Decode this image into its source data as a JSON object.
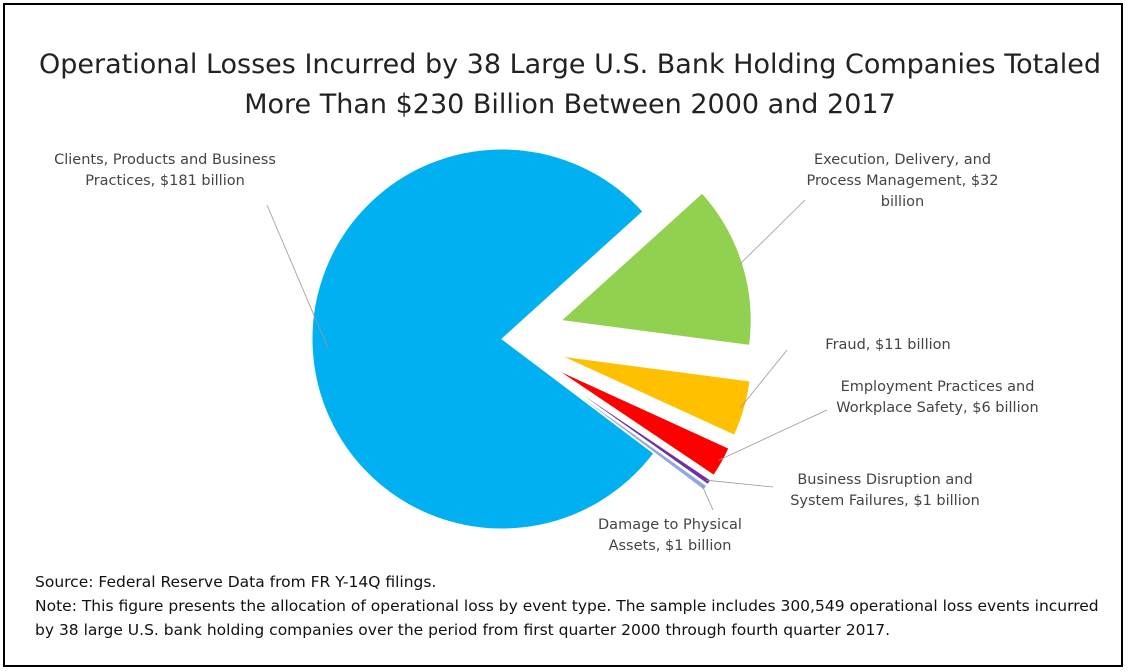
{
  "chart_data": {
    "type": "pie",
    "title": "Operational Losses Incurred by 38 Large U.S. Bank Holding Companies Totaled More Than $230 Billion Between 2000 and 2017",
    "values": [
      181,
      32,
      11,
      6,
      1,
      1
    ],
    "value_labels": [
      "Clients, Products and Business Practices, $181 billion",
      "Execution, Delivery, and Process Management, $32 billion",
      "Fraud, $11 billion",
      "Employment Practices and Workplace Safety, $6 billion",
      "Business Disruption and System Failures, $1 billion",
      "Damage to Physical Assets, $1 billion"
    ],
    "colors": [
      "#00b0f0",
      "#92d050",
      "#ffc000",
      "#ff0000",
      "#7030a0",
      "#8ea9db"
    ],
    "source": "Source: Federal Reserve Data from FR Y-14Q filings.",
    "note": "Note: This figure presents the allocation of operational loss by event type. The sample includes 300,549 operational loss events incurred by 38 large U.S. bank holding companies over the period from first quarter 2000 through fourth quarter 2017."
  }
}
